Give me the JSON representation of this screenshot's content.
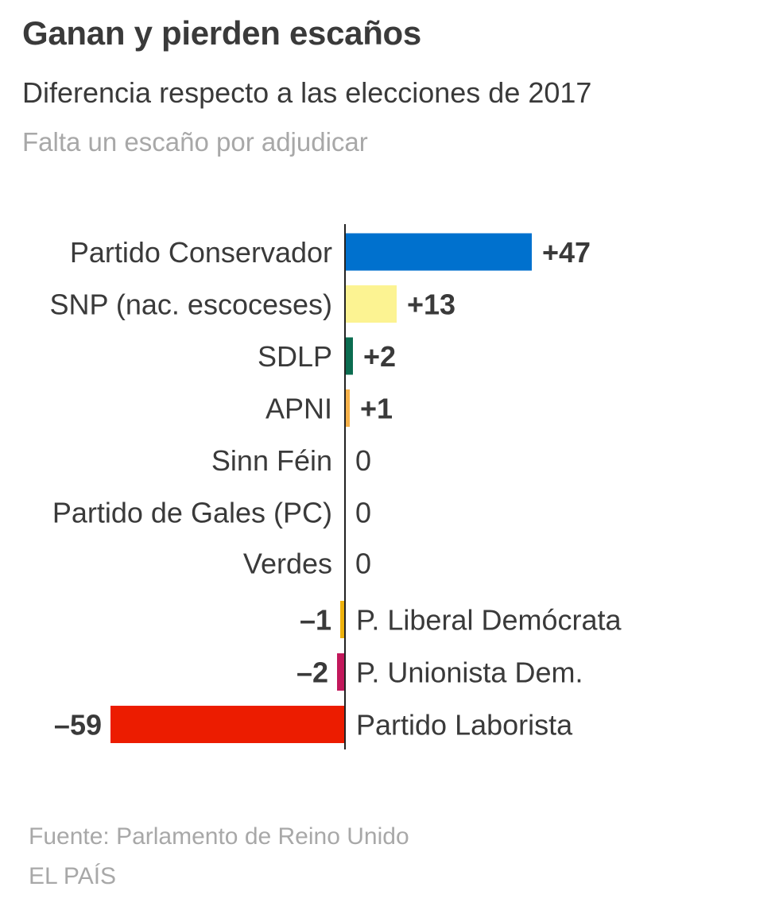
{
  "header": {
    "title": "Ganan y pierden escaños",
    "subtitle": "Diferencia respecto a las elecciones de 2017",
    "note": "Falta un escaño por adjudicar"
  },
  "footer": {
    "source": "Fuente: Parlamento de Reino Unido",
    "brand": "EL PAÍS"
  },
  "chart_data": {
    "type": "bar",
    "orientation": "horizontal",
    "title": "Ganan y pierden escaños",
    "subtitle": "Diferencia respecto a las elecciones de 2017",
    "xlabel": "",
    "ylabel": "",
    "xlim": [
      -59,
      47
    ],
    "grid": false,
    "categories": [
      "Partido Conservador",
      "SNP (nac. escoceses)",
      "SDLP",
      "APNI",
      "Sinn Féin",
      "Partido de Gales (PC)",
      "Verdes",
      "P. Liberal Demócrata",
      "P. Unionista Dem.",
      "Partido Laborista"
    ],
    "values": [
      47,
      13,
      2,
      1,
      0,
      0,
      0,
      -1,
      -2,
      -59
    ],
    "value_labels": [
      "+47",
      "+13",
      "+2",
      "+1",
      "0",
      "0",
      "0",
      "–1",
      "–2",
      "–59"
    ],
    "colors": [
      "#0071ce",
      "#fcf392",
      "#0b6c50",
      "#f7b24a",
      "#1a7a3a",
      "#3a8a2a",
      "#5dbb46",
      "#eeb20d",
      "#c2185b",
      "#ec1c00"
    ],
    "axis_color": "#222222"
  }
}
